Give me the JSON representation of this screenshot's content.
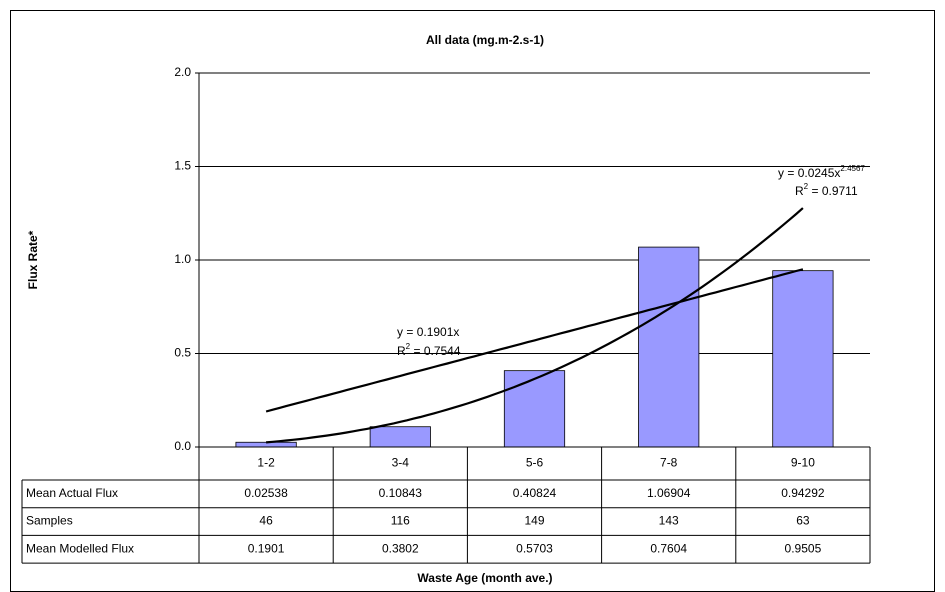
{
  "chart_data": {
    "type": "bar",
    "title": "All data (mg.m-2.s-1)",
    "y_label": "Flux Rate*",
    "x_label": "Waste Age (month ave.)",
    "categories": [
      "1-2",
      "3-4",
      "5-6",
      "7-8",
      "9-10"
    ],
    "series": [
      {
        "name": "Mean Actual Flux",
        "color": "#9999ff",
        "values": [
          0.02538,
          0.10843,
          0.40824,
          1.06904,
          0.94292
        ]
      }
    ],
    "table_rows": [
      {
        "name": "Samples",
        "values": [
          46,
          116,
          149,
          143,
          63
        ]
      },
      {
        "name": "Mean Modelled Flux",
        "values": [
          0.1901,
          0.3802,
          0.5703,
          0.7604,
          0.9505
        ]
      }
    ],
    "ylim": [
      0,
      2
    ],
    "yticks": [
      {
        "value": 0,
        "label": "0.0"
      },
      {
        "value": 0.5,
        "label": "0.5"
      },
      {
        "value": 1,
        "label": "1.0"
      },
      {
        "value": 1.5,
        "label": "1.5"
      },
      {
        "value": 2,
        "label": "2.0"
      }
    ],
    "grid": true,
    "trendlines": [
      {
        "type": "linear",
        "eq_prefix": "y = ",
        "coef": 0.1901,
        "eq_var": "x",
        "r_prefix": "R",
        "r_sup": "2",
        "r_infix": " = ",
        "r2": 0.7544
      },
      {
        "type": "power",
        "eq_prefix": "y = ",
        "coef": 0.0245,
        "eq_var": "x",
        "exponent": 2.4567,
        "r_prefix": "R",
        "r_sup": "2",
        "r_infix": " = ",
        "r2": 0.9711
      }
    ]
  }
}
